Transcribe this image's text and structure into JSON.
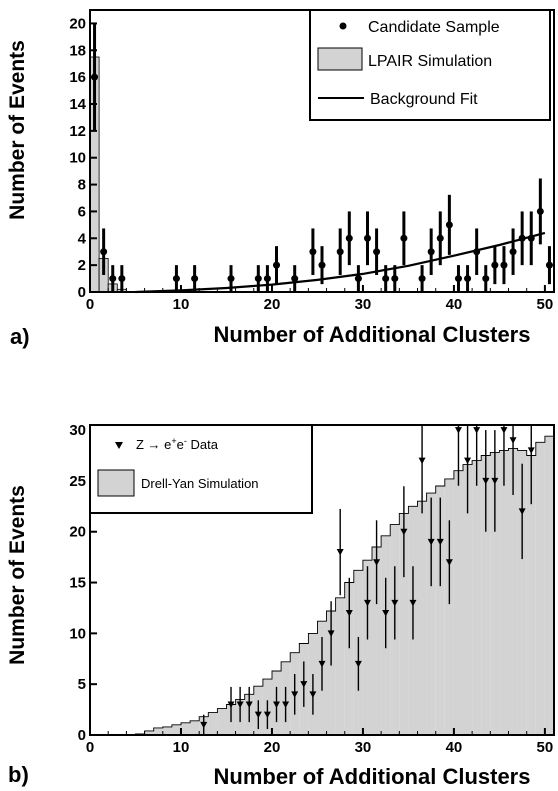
{
  "chart_data": [
    {
      "panel_label": "a)",
      "type": "scatter",
      "xlabel": "Number of Additional Clusters",
      "ylabel": "Number of Events",
      "xlim": [
        0,
        51
      ],
      "ylim": [
        0,
        21
      ],
      "xticks": [
        "0",
        "10",
        "20",
        "30",
        "40",
        "50"
      ],
      "yticks": [
        "0",
        "2",
        "4",
        "6",
        "8",
        "10",
        "12",
        "14",
        "16",
        "18",
        "20"
      ],
      "legend": {
        "position": "top-right",
        "entries": [
          "Candidate Sample",
          "LPAIR Simulation",
          "Background Fit"
        ]
      },
      "series": [
        {
          "name": "Candidate Sample",
          "style": "points-with-errorbars",
          "x": [
            0.5,
            1.5,
            2.5,
            3.5,
            9.5,
            11.5,
            15.5,
            18.5,
            19.5,
            20.5,
            22.5,
            24.5,
            25.5,
            27.5,
            28.5,
            29.5,
            30.5,
            31.5,
            32.5,
            33.5,
            34.5,
            36.5,
            37.5,
            38.5,
            39.5,
            40.5,
            41.5,
            42.5,
            43.5,
            44.5,
            45.5,
            46.5,
            47.5,
            48.5,
            49.5,
            50.5
          ],
          "y": [
            16,
            3,
            1,
            1,
            1,
            1,
            1,
            1,
            1,
            2,
            1,
            3,
            2,
            3,
            4,
            1,
            4,
            3,
            1,
            1,
            4,
            1,
            3,
            4,
            5,
            1,
            1,
            3,
            1,
            2,
            2,
            3,
            4,
            4,
            6,
            2
          ]
        },
        {
          "name": "LPAIR Simulation",
          "style": "filled-histogram",
          "bins_x": [
            0,
            1,
            2,
            3,
            4
          ],
          "values": [
            17.5,
            2.5,
            0.6,
            0.2,
            0.0
          ]
        },
        {
          "name": "Background Fit",
          "style": "line",
          "x": [
            5,
            10,
            15,
            20,
            25,
            30,
            35,
            40,
            45,
            50
          ],
          "y": [
            0.0,
            0.12,
            0.3,
            0.55,
            0.9,
            1.35,
            1.95,
            2.7,
            3.5,
            4.4
          ]
        }
      ]
    },
    {
      "panel_label": "b)",
      "type": "bar",
      "xlabel": "Number of Additional Clusters",
      "ylabel": "Number of Events",
      "xlim": [
        0,
        51
      ],
      "ylim": [
        0,
        30.5
      ],
      "xticks": [
        "0",
        "10",
        "20",
        "30",
        "40",
        "50"
      ],
      "yticks": [
        "0",
        "5",
        "10",
        "15",
        "20",
        "25",
        "30"
      ],
      "legend": {
        "position": "top-left",
        "data_label": "Z → e⁺e⁻ Data",
        "entries": [
          "Z → e",
          "+",
          "e",
          "-",
          " Data",
          "Drell-Yan Simulation"
        ]
      },
      "series": [
        {
          "name": "Drell-Yan Simulation",
          "style": "filled-histogram",
          "bins_x": [
            0,
            1,
            2,
            3,
            4,
            5,
            6,
            7,
            8,
            9,
            10,
            11,
            12,
            13,
            14,
            15,
            16,
            17,
            18,
            19,
            20,
            21,
            22,
            23,
            24,
            25,
            26,
            27,
            28,
            29,
            30,
            31,
            32,
            33,
            34,
            35,
            36,
            37,
            38,
            39,
            40,
            41,
            42,
            43,
            44,
            45,
            46,
            47,
            48,
            49,
            50
          ],
          "values": [
            0,
            0,
            0,
            0,
            0,
            0.1,
            0.4,
            0.7,
            0.8,
            1.0,
            1.2,
            1.4,
            1.8,
            2.2,
            2.6,
            3.0,
            3.5,
            4.0,
            4.8,
            5.5,
            6.3,
            7.2,
            8.1,
            9.0,
            10.0,
            11.2,
            12.2,
            13.5,
            15.0,
            16.2,
            17.2,
            18.5,
            19.6,
            20.7,
            21.8,
            22.5,
            23.0,
            23.8,
            24.5,
            25.2,
            26.0,
            26.6,
            27.0,
            27.5,
            27.8,
            28.0,
            28.2,
            28.0,
            27.5,
            28.8,
            29.4
          ]
        },
        {
          "name": "Z → e⁺e⁻ Data",
          "style": "triangle-points-with-errorbars",
          "x": [
            12.5,
            15.5,
            16.5,
            17.5,
            18.5,
            19.5,
            20.5,
            21.5,
            22.5,
            23.5,
            24.5,
            25.5,
            26.5,
            27.5,
            28.5,
            29.5,
            30.5,
            31.5,
            32.5,
            33.5,
            34.5,
            35.5,
            36.5,
            37.5,
            38.5,
            39.5,
            40.5,
            41.5,
            42.5,
            43.5,
            44.5,
            45.5,
            46.5,
            47.5,
            48.5
          ],
          "y": [
            1,
            3,
            3,
            3,
            2,
            2,
            3,
            3,
            4,
            5,
            4,
            7,
            10,
            18,
            12,
            7,
            13,
            17,
            12,
            13,
            20,
            13,
            27,
            19,
            19,
            17,
            30,
            27,
            30,
            25,
            25,
            30,
            29,
            22,
            28
          ]
        }
      ]
    }
  ]
}
